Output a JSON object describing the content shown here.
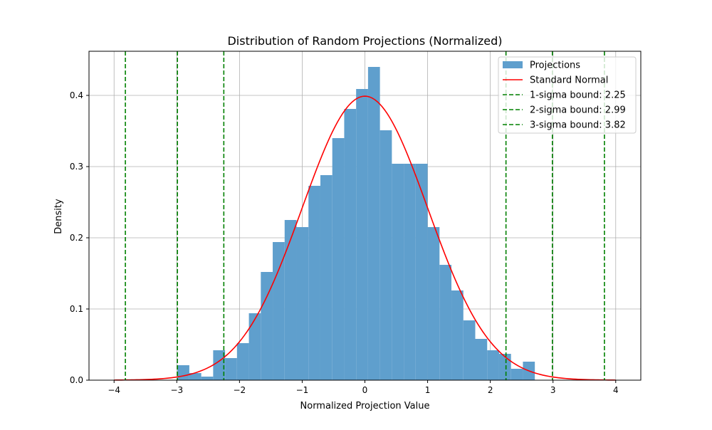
{
  "chart_data": {
    "type": "bar",
    "title": "Distribution of Random Projections (Normalized)",
    "xlabel": "Normalized Projection Value",
    "ylabel": "Density",
    "xlim": [
      -4.4,
      4.4
    ],
    "ylim": [
      0,
      0.462
    ],
    "xticks": [
      -4,
      -3,
      -2,
      -1,
      0,
      1,
      2,
      3,
      4
    ],
    "xtick_labels": [
      "−4",
      "−3",
      "−2",
      "−1",
      "0",
      "1",
      "2",
      "3",
      "4"
    ],
    "yticks": [
      0.0,
      0.1,
      0.2,
      0.3,
      0.4
    ],
    "ytick_labels": [
      "0.0",
      "0.1",
      "0.2",
      "0.3",
      "0.4"
    ],
    "grid": true,
    "legend_position": "top-right",
    "series": [
      {
        "name": "Projections",
        "kind": "histogram",
        "color": "#5f9fcd",
        "bins": [
          {
            "x0": -2.99,
            "x1": -2.8,
            "value": 0.021
          },
          {
            "x0": -2.8,
            "x1": -2.61,
            "value": 0.01
          },
          {
            "x0": -2.61,
            "x1": -2.42,
            "value": 0.005
          },
          {
            "x0": -2.42,
            "x1": -2.23,
            "value": 0.042
          },
          {
            "x0": -2.23,
            "x1": -2.04,
            "value": 0.031
          },
          {
            "x0": -2.04,
            "x1": -1.85,
            "value": 0.052
          },
          {
            "x0": -1.85,
            "x1": -1.66,
            "value": 0.094
          },
          {
            "x0": -1.66,
            "x1": -1.47,
            "value": 0.152
          },
          {
            "x0": -1.47,
            "x1": -1.28,
            "value": 0.194
          },
          {
            "x0": -1.28,
            "x1": -1.09,
            "value": 0.225
          },
          {
            "x0": -1.09,
            "x1": -0.9,
            "value": 0.215
          },
          {
            "x0": -0.9,
            "x1": -0.71,
            "value": 0.273
          },
          {
            "x0": -0.71,
            "x1": -0.52,
            "value": 0.288
          },
          {
            "x0": -0.52,
            "x1": -0.33,
            "value": 0.34
          },
          {
            "x0": -0.33,
            "x1": -0.14,
            "value": 0.381
          },
          {
            "x0": -0.14,
            "x1": 0.05,
            "value": 0.409
          },
          {
            "x0": 0.05,
            "x1": 0.24,
            "value": 0.44
          },
          {
            "x0": 0.24,
            "x1": 0.43,
            "value": 0.351
          },
          {
            "x0": 0.43,
            "x1": 0.62,
            "value": 0.304
          },
          {
            "x0": 0.62,
            "x1": 0.81,
            "value": 0.304
          },
          {
            "x0": 0.81,
            "x1": 1.0,
            "value": 0.304
          },
          {
            "x0": 1.0,
            "x1": 1.19,
            "value": 0.215
          },
          {
            "x0": 1.19,
            "x1": 1.38,
            "value": 0.162
          },
          {
            "x0": 1.38,
            "x1": 1.57,
            "value": 0.126
          },
          {
            "x0": 1.57,
            "x1": 1.76,
            "value": 0.084
          },
          {
            "x0": 1.76,
            "x1": 1.95,
            "value": 0.058
          },
          {
            "x0": 1.95,
            "x1": 2.14,
            "value": 0.042
          },
          {
            "x0": 2.14,
            "x1": 2.33,
            "value": 0.037
          },
          {
            "x0": 2.33,
            "x1": 2.52,
            "value": 0.016
          },
          {
            "x0": 2.52,
            "x1": 2.71,
            "value": 0.026
          }
        ]
      },
      {
        "name": "Standard Normal",
        "kind": "line",
        "color": "#ff0000",
        "function": "normal_pdf",
        "x_range": [
          -4,
          4
        ]
      },
      {
        "name": "1-sigma bound: 2.25",
        "kind": "vline",
        "color": "#008000",
        "x": [
          -2.25,
          2.25
        ]
      },
      {
        "name": "2-sigma bound: 2.99",
        "kind": "vline",
        "color": "#008000",
        "x": [
          -2.99,
          2.99
        ]
      },
      {
        "name": "3-sigma bound: 3.82",
        "kind": "vline",
        "color": "#008000",
        "x": [
          -3.82,
          3.82
        ]
      }
    ]
  }
}
